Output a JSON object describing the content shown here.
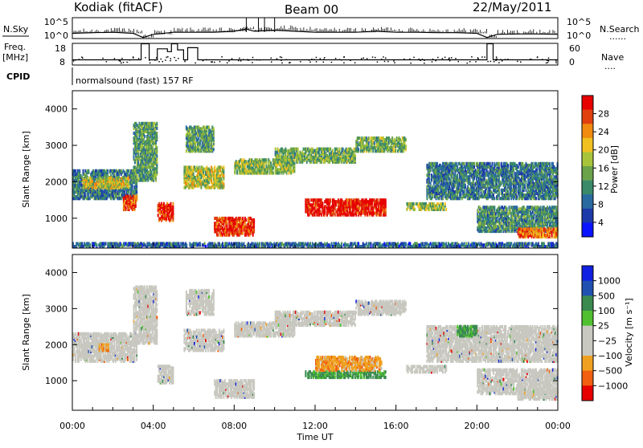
{
  "header": {
    "station": "Kodiak (fitACF)",
    "beam": "Beam 00",
    "date": "22/May/2011"
  },
  "side_labels": {
    "nsky": "N.Sky",
    "freq_line1": "Freq.",
    "freq_line2": "[MHz]",
    "cpid": "CPID",
    "nsearch": "N.Search",
    "nave": "Nave",
    "dots": "......",
    "dots_short": "...."
  },
  "cpid_text": "normalsound (fast) 157 RF",
  "colors": {
    "power_scale": [
      "#0a14ff",
      "#1c3aa8",
      "#2a6aa0",
      "#3a8a6a",
      "#6aa34a",
      "#a8c43a",
      "#f0c020",
      "#f08a10",
      "#e04010",
      "#e60000"
    ],
    "velocity_scale": [
      "#e60000",
      "#f06010",
      "#f0a020",
      "#c8c8c0",
      "#c8c8c0",
      "#50c030",
      "#3a8a50",
      "#2050b0",
      "#1020e0"
    ]
  },
  "chart_data": [
    {
      "type": "line",
      "name": "noise-panel",
      "left_label": "N.Sky",
      "right_label": "N.Search",
      "ytick_left": [
        "10^5",
        "10^0"
      ],
      "ytick_right": [
        "10^5",
        "10^0"
      ],
      "x_hours": [
        0,
        1,
        2,
        3,
        3.5,
        4,
        5,
        6,
        7,
        8,
        8.6,
        9,
        10,
        11,
        12,
        13,
        14,
        15,
        16,
        17,
        18,
        19,
        20,
        20.5,
        21,
        22,
        23,
        24
      ],
      "y_level": [
        0.25,
        0.28,
        0.3,
        0.25,
        0.05,
        0.2,
        0.3,
        0.3,
        0.3,
        0.35,
        0.45,
        0.35,
        0.4,
        0.35,
        0.3,
        0.3,
        0.3,
        0.35,
        0.3,
        0.3,
        0.28,
        0.28,
        0.25,
        0.05,
        0.2,
        0.22,
        0.22,
        0.2
      ],
      "spikes_hours": [
        8.6,
        9.2,
        9.5,
        10.0
      ]
    },
    {
      "type": "line",
      "name": "freq-panel",
      "ytick_left": [
        "18",
        "8"
      ],
      "ytick_right": [
        "60",
        "0"
      ],
      "freq_steps": [
        {
          "from": 0,
          "to": 3.4,
          "mhz": 10.4
        },
        {
          "from": 3.4,
          "to": 3.8,
          "mhz": 17.8
        },
        {
          "from": 3.8,
          "to": 4.2,
          "mhz": 10.4
        },
        {
          "from": 4.2,
          "to": 4.7,
          "mhz": 15.5
        },
        {
          "from": 4.7,
          "to": 4.9,
          "mhz": 14.2
        },
        {
          "from": 4.9,
          "to": 5.2,
          "mhz": 17.8
        },
        {
          "from": 5.2,
          "to": 5.5,
          "mhz": 15.0
        },
        {
          "from": 5.5,
          "to": 5.7,
          "mhz": 10.4
        },
        {
          "from": 5.7,
          "to": 6.2,
          "mhz": 16.0
        },
        {
          "from": 6.2,
          "to": 20.5,
          "mhz": 10.4
        },
        {
          "from": 20.5,
          "to": 20.8,
          "mhz": 17.8
        },
        {
          "from": 20.8,
          "to": 24,
          "mhz": 10.4
        }
      ],
      "freq_range": [
        8,
        18
      ]
    },
    {
      "type": "heatmap",
      "name": "power",
      "ylabel": "Slant Range [km]",
      "colorbar_label": "Power [dB]",
      "colorbar_ticks": [
        "28",
        "24",
        "20",
        "16",
        "12",
        "8",
        "4"
      ],
      "ylim": [
        180,
        4500
      ],
      "yticks": [
        1000,
        2000,
        3000,
        4000
      ],
      "xlim_hours": [
        0,
        24
      ],
      "bands": [
        {
          "t0": 0.0,
          "t1": 3.2,
          "r0": 1500,
          "r1": 2300,
          "level": 0.3
        },
        {
          "t0": 0.5,
          "t1": 2.8,
          "r0": 1800,
          "r1": 2100,
          "level": 0.6
        },
        {
          "t0": 2.5,
          "t1": 3.2,
          "r0": 1200,
          "r1": 1600,
          "level": 0.85
        },
        {
          "t0": 3.0,
          "t1": 4.2,
          "r0": 2000,
          "r1": 3600,
          "level": 0.4
        },
        {
          "t0": 4.2,
          "t1": 5.0,
          "r0": 900,
          "r1": 1400,
          "level": 0.9
        },
        {
          "t0": 5.5,
          "t1": 7.5,
          "r0": 1800,
          "r1": 2400,
          "level": 0.55
        },
        {
          "t0": 5.6,
          "t1": 7.0,
          "r0": 2800,
          "r1": 3500,
          "level": 0.4
        },
        {
          "t0": 7.0,
          "t1": 9.0,
          "r0": 500,
          "r1": 1000,
          "level": 0.9
        },
        {
          "t0": 8.0,
          "t1": 11.0,
          "r0": 2200,
          "r1": 2600,
          "level": 0.5
        },
        {
          "t0": 10.0,
          "t1": 14.0,
          "r0": 2500,
          "r1": 2900,
          "level": 0.45
        },
        {
          "t0": 11.5,
          "t1": 15.5,
          "r0": 1050,
          "r1": 1500,
          "level": 0.95
        },
        {
          "t0": 14.0,
          "t1": 16.5,
          "r0": 2800,
          "r1": 3200,
          "level": 0.45
        },
        {
          "t0": 16.5,
          "t1": 18.5,
          "r0": 1200,
          "r1": 1400,
          "level": 0.5
        },
        {
          "t0": 17.5,
          "t1": 24.0,
          "r0": 1500,
          "r1": 2500,
          "level": 0.3
        },
        {
          "t0": 20.0,
          "t1": 24.0,
          "r0": 600,
          "r1": 1300,
          "level": 0.35
        },
        {
          "t0": 22.0,
          "t1": 24.0,
          "r0": 450,
          "r1": 700,
          "level": 0.8
        },
        {
          "t0": 0.0,
          "t1": 24.0,
          "r0": 180,
          "r1": 300,
          "level": 0.25
        }
      ]
    },
    {
      "type": "heatmap",
      "name": "velocity",
      "ylabel": "Slant Range [km]",
      "colorbar_label": "Velocity [m s⁻¹]",
      "colorbar_ticks": [
        "1000",
        "500",
        "100",
        "25",
        "−25",
        "−100",
        "−500",
        "−1000"
      ],
      "ylim": [
        180,
        4500
      ],
      "yticks": [
        1000,
        2000,
        3000,
        4000
      ],
      "xlim_hours": [
        0,
        24
      ],
      "xticks": [
        "00:00",
        "04:00",
        "08:00",
        "12:00",
        "16:00",
        "20:00",
        "00:00"
      ],
      "xlabel": "Time UT",
      "bands": [
        {
          "t0": 0.0,
          "t1": 3.2,
          "r0": 1500,
          "r1": 2300,
          "kind": "grey"
        },
        {
          "t0": 1.3,
          "t1": 1.8,
          "r0": 1800,
          "r1": 2000,
          "kind": "orange"
        },
        {
          "t0": 3.0,
          "t1": 4.2,
          "r0": 2000,
          "r1": 3600,
          "kind": "grey"
        },
        {
          "t0": 4.2,
          "t1": 5.0,
          "r0": 900,
          "r1": 1400,
          "kind": "grey"
        },
        {
          "t0": 5.5,
          "t1": 7.5,
          "r0": 1800,
          "r1": 2400,
          "kind": "grey"
        },
        {
          "t0": 5.6,
          "t1": 7.0,
          "r0": 2800,
          "r1": 3500,
          "kind": "grey"
        },
        {
          "t0": 7.0,
          "t1": 9.0,
          "r0": 500,
          "r1": 1000,
          "kind": "grey"
        },
        {
          "t0": 8.0,
          "t1": 11.0,
          "r0": 2200,
          "r1": 2600,
          "kind": "grey"
        },
        {
          "t0": 10.0,
          "t1": 14.0,
          "r0": 2500,
          "r1": 2900,
          "kind": "grey"
        },
        {
          "t0": 11.5,
          "t1": 15.5,
          "r0": 1050,
          "r1": 1250,
          "kind": "green"
        },
        {
          "t0": 12.0,
          "t1": 15.3,
          "r0": 1250,
          "r1": 1650,
          "kind": "orange"
        },
        {
          "t0": 14.0,
          "t1": 16.5,
          "r0": 2800,
          "r1": 3200,
          "kind": "grey"
        },
        {
          "t0": 16.5,
          "t1": 18.5,
          "r0": 1200,
          "r1": 1400,
          "kind": "grey"
        },
        {
          "t0": 17.5,
          "t1": 24.0,
          "r0": 1500,
          "r1": 2500,
          "kind": "grey"
        },
        {
          "t0": 19.0,
          "t1": 20.0,
          "r0": 2200,
          "r1": 2500,
          "kind": "green"
        },
        {
          "t0": 20.0,
          "t1": 24.0,
          "r0": 600,
          "r1": 1300,
          "kind": "grey"
        },
        {
          "t0": 22.0,
          "t1": 24.0,
          "r0": 450,
          "r1": 700,
          "kind": "grey"
        }
      ]
    }
  ]
}
